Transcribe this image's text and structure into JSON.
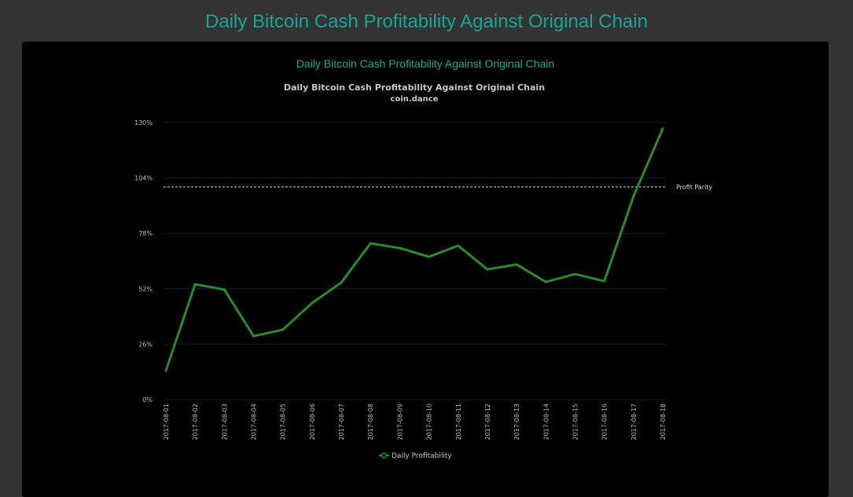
{
  "page_title": "Daily Bitcoin Cash Profitability Against Original Chain",
  "panel_title": "Daily Bitcoin Cash Profitability Against Original Chain",
  "chart_data": {
    "type": "line",
    "title": "Daily Bitcoin Cash Profitability Against Original Chain",
    "subtitle": "coin.dance",
    "xlabel": "",
    "ylabel": "",
    "ylim": [
      0,
      130
    ],
    "yticks": [
      0,
      26,
      52,
      78,
      104,
      130
    ],
    "ytick_labels": [
      "0%",
      "26%",
      "52%",
      "78%",
      "104%",
      "130%"
    ],
    "grid": true,
    "categories": [
      "2017-08-01",
      "2017-08-02",
      "2017-08-03",
      "2017-08-04",
      "2017-08-05",
      "2017-08-06",
      "2017-08-07",
      "2017-08-08",
      "2017-08-09",
      "2017-08-10",
      "2017-08-11",
      "2017-08-12",
      "2017-08-13",
      "2017-08-14",
      "2017-08-15",
      "2017-08-16",
      "2017-08-17",
      "2017-08-18"
    ],
    "series": [
      {
        "name": "Daily Profitability",
        "color": "#2a8a2a",
        "values": [
          13.6,
          54.1,
          51.6,
          29.8,
          32.8,
          45.3,
          54.9,
          73.3,
          71.1,
          67.0,
          72.2,
          61.1,
          63.4,
          55.2,
          58.9,
          55.6,
          95.4,
          127.1
        ]
      }
    ],
    "reference_line": {
      "label": "Profit Parity",
      "value": 100
    },
    "legend_position": "bottom"
  }
}
